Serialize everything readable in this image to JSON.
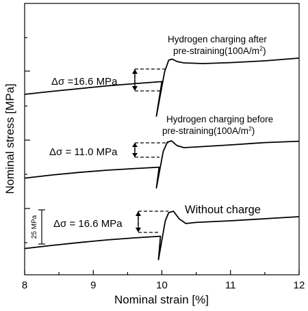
{
  "chart_data": {
    "type": "line",
    "xlabel": "Nominal strain [%]",
    "ylabel": "Nominal stress [MPa]",
    "xlim": [
      8,
      12
    ],
    "xticks": [
      "8",
      "9",
      "10",
      "11",
      "12"
    ],
    "grid": false,
    "series": [
      {
        "name": "Without charge",
        "points": [
          [
            8.0,
            -16.8
          ],
          [
            8.4,
            -14.5
          ],
          [
            8.8,
            -12.4
          ],
          [
            9.2,
            -10.5
          ],
          [
            9.6,
            -9.0
          ],
          [
            9.98,
            -7.8
          ],
          [
            9.95,
            -25
          ],
          [
            10.05,
            3.5
          ],
          [
            10.1,
            9.5
          ],
          [
            10.17,
            10.5
          ],
          [
            10.25,
            5.0
          ],
          [
            10.35,
            1.5
          ],
          [
            10.5,
            2.3
          ],
          [
            11.0,
            3.5
          ],
          [
            11.5,
            5.0
          ],
          [
            12.0,
            6.5
          ]
        ]
      },
      {
        "name": "Hydrogen charging before pre-straining(100A/m²)",
        "points": [
          [
            8.0,
            -16.8
          ],
          [
            8.4,
            -14.5
          ],
          [
            8.8,
            -12.6
          ],
          [
            9.2,
            -11.0
          ],
          [
            9.6,
            -9.8
          ],
          [
            9.96,
            -8.8
          ],
          [
            9.92,
            -24
          ],
          [
            10.02,
            2.8
          ],
          [
            10.08,
            9.5
          ],
          [
            10.14,
            10.5
          ],
          [
            10.22,
            7.0
          ],
          [
            10.32,
            5.5
          ],
          [
            10.5,
            6.0
          ],
          [
            11.0,
            7.5
          ],
          [
            11.5,
            9.2
          ],
          [
            12.0,
            10.2
          ]
        ]
      },
      {
        "name": "Hydrogen charging after pre-straining(100A/m²)",
        "points": [
          [
            8.0,
            -6.5
          ],
          [
            8.4,
            -4.3
          ],
          [
            8.8,
            -2.3
          ],
          [
            9.2,
            -0.3
          ],
          [
            9.6,
            1.3
          ],
          [
            10.0,
            2.8
          ],
          [
            9.92,
            -22.5
          ],
          [
            10.04,
            10
          ],
          [
            10.1,
            18.5
          ],
          [
            10.15,
            19.3
          ],
          [
            10.22,
            17.5
          ],
          [
            10.32,
            16.5
          ],
          [
            10.6,
            16.0
          ],
          [
            11.0,
            16.7
          ],
          [
            11.5,
            18.0
          ],
          [
            12.0,
            20.0
          ]
        ]
      }
    ],
    "annotations": {
      "label_after": [
        "Hydrogen charging  after",
        "pre-straining(100A/m",
        "2",
        ")"
      ],
      "label_before": [
        "Hydrogen charging before",
        "pre-straining(100A/m",
        "2",
        ")"
      ],
      "label_without": "Without charge",
      "delta_top": "Δσ =16.6 MPa",
      "delta_mid": "Δσ = 11.0 MPa",
      "delta_bot": "Δσ = 16.6 MPa",
      "scale_bar": "25 MPa"
    }
  }
}
